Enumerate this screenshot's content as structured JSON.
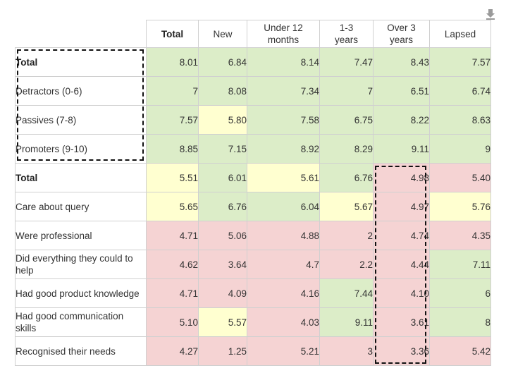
{
  "columns": [
    "Total",
    "New",
    "Under 12 months",
    "1-3 years",
    "Over 3 years",
    "Lapsed"
  ],
  "rows": [
    {
      "label": "Total",
      "bold": true,
      "values": [
        "8.01",
        "6.84",
        "8.14",
        "7.47",
        "8.43",
        "7.57"
      ],
      "colors": [
        "green",
        "green",
        "green",
        "green",
        "green",
        "green"
      ]
    },
    {
      "label": "Detractors (0-6)",
      "bold": false,
      "values": [
        "7",
        "8.08",
        "7.34",
        "7",
        "6.51",
        "6.74"
      ],
      "colors": [
        "green",
        "green",
        "green",
        "green",
        "green",
        "green"
      ]
    },
    {
      "label": "Passives (7-8)",
      "bold": false,
      "values": [
        "7.57",
        "5.80",
        "7.58",
        "6.75",
        "8.22",
        "8.63"
      ],
      "colors": [
        "green",
        "yellow",
        "green",
        "green",
        "green",
        "green"
      ]
    },
    {
      "label": "Promoters (9-10)",
      "bold": false,
      "values": [
        "8.85",
        "7.15",
        "8.92",
        "8.29",
        "9.11",
        "9"
      ],
      "colors": [
        "green",
        "green",
        "green",
        "green",
        "green",
        "green"
      ]
    },
    {
      "label": "Total",
      "bold": true,
      "values": [
        "5.51",
        "6.01",
        "5.61",
        "6.76",
        "4.98",
        "5.40"
      ],
      "colors": [
        "yellow",
        "green",
        "yellow",
        "green",
        "red",
        "red"
      ]
    },
    {
      "label": "Care about query",
      "bold": false,
      "values": [
        "5.65",
        "6.76",
        "6.04",
        "5.67",
        "4.97",
        "5.76"
      ],
      "colors": [
        "yellow",
        "green",
        "green",
        "yellow",
        "red",
        "yellow"
      ]
    },
    {
      "label": "Were professional",
      "bold": false,
      "values": [
        "4.71",
        "5.06",
        "4.88",
        "2",
        "4.74",
        "4.35"
      ],
      "colors": [
        "red",
        "red",
        "red",
        "red",
        "red",
        "red"
      ]
    },
    {
      "label": "Did everything they could to help",
      "bold": false,
      "values": [
        "4.62",
        "3.64",
        "4.7",
        "2.2",
        "4.44",
        "7.11"
      ],
      "colors": [
        "red",
        "red",
        "red",
        "red",
        "red",
        "green"
      ]
    },
    {
      "label": "Had good product knowledge",
      "bold": false,
      "values": [
        "4.71",
        "4.09",
        "4.16",
        "7.44",
        "4.10",
        "6"
      ],
      "colors": [
        "red",
        "red",
        "red",
        "green",
        "red",
        "green"
      ]
    },
    {
      "label": "Had good communication skills",
      "bold": false,
      "values": [
        "5.10",
        "5.57",
        "4.03",
        "9.11",
        "3.61",
        "8"
      ],
      "colors": [
        "red",
        "yellow",
        "red",
        "green",
        "red",
        "green"
      ]
    },
    {
      "label": "Recognised their needs",
      "bold": false,
      "values": [
        "4.27",
        "1.25",
        "5.21",
        "3",
        "3.36",
        "5.42"
      ],
      "colors": [
        "red",
        "red",
        "red",
        "red",
        "red",
        "red"
      ]
    }
  ],
  "icons": {
    "download": "download-icon"
  }
}
